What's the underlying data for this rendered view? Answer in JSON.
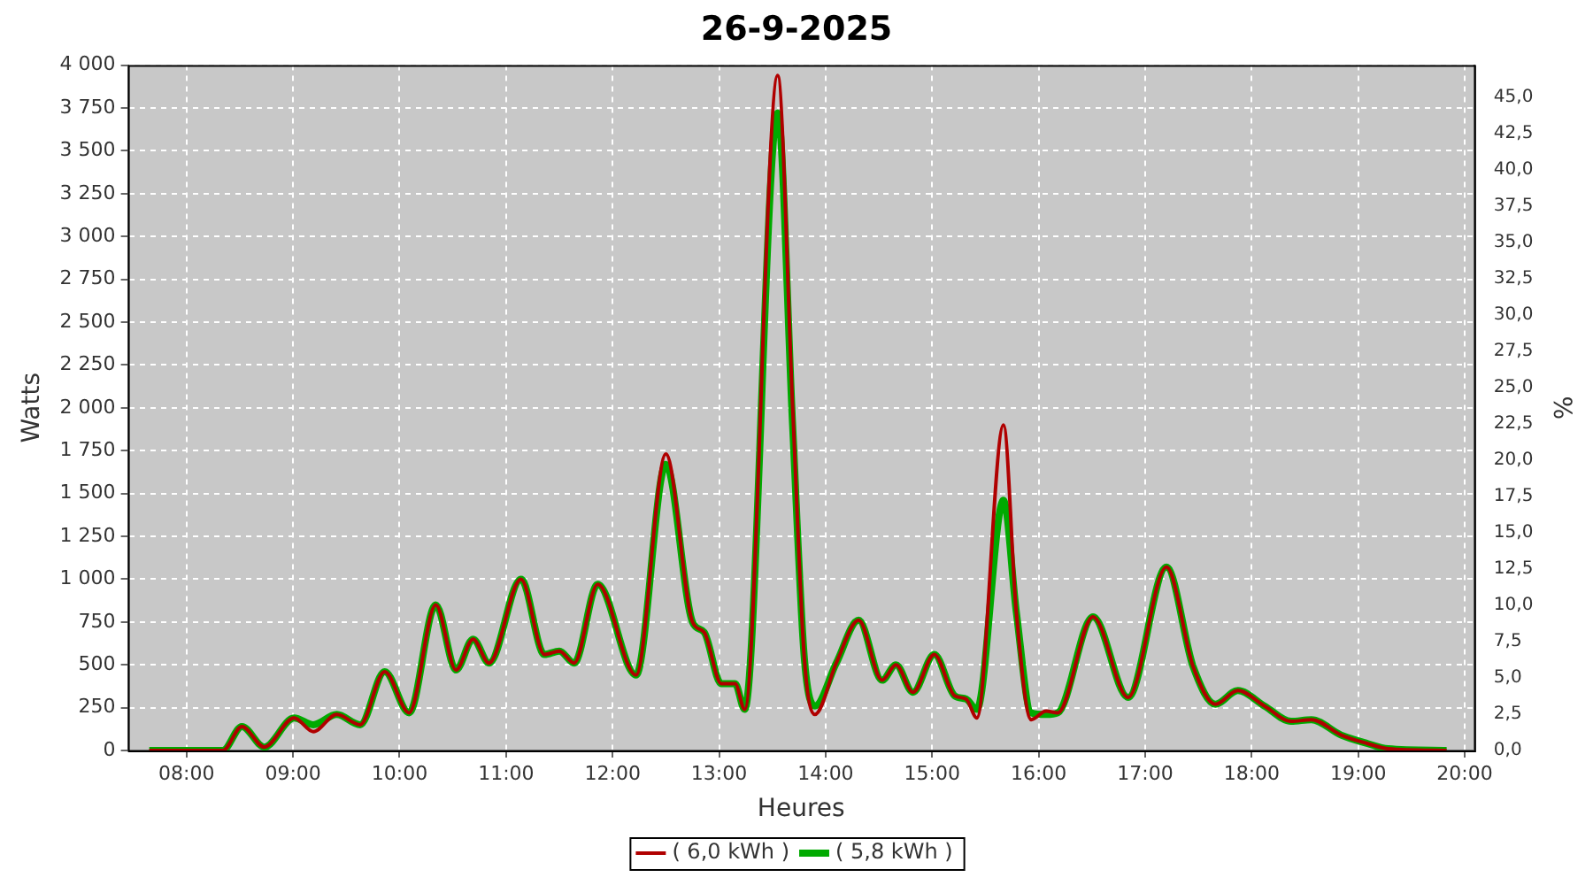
{
  "chart_data": {
    "type": "line",
    "title": "26-9-2025",
    "xlabel": "Heures",
    "ylabel": "Watts",
    "y2label": "%",
    "x": [
      7.65,
      8.2,
      8.34,
      8.52,
      8.73,
      9.01,
      9.19,
      9.41,
      9.63,
      9.86,
      10.09,
      10.34,
      10.53,
      10.69,
      10.84,
      11.14,
      11.36,
      11.5,
      11.64,
      11.86,
      12.22,
      12.5,
      12.75,
      12.86,
      13.02,
      13.15,
      13.24,
      13.55,
      13.69,
      13.8,
      13.9,
      14.1,
      14.31,
      14.53,
      14.66,
      14.82,
      15.02,
      15.21,
      15.32,
      15.42,
      15.67,
      15.79,
      15.93,
      16.07,
      16.18,
      16.51,
      16.84,
      17.2,
      17.45,
      17.66,
      17.87,
      18.12,
      18.37,
      18.56,
      18.84,
      19.09,
      19.28,
      19.83
    ],
    "series": [
      {
        "name": "( 6,0 kWh )",
        "color": "#b00000",
        "values": [
          0,
          0,
          0,
          140,
          20,
          190,
          110,
          210,
          150,
          460,
          220,
          850,
          470,
          650,
          510,
          1000,
          560,
          580,
          510,
          970,
          440,
          1730,
          750,
          690,
          390,
          390,
          240,
          3940,
          2010,
          540,
          210,
          510,
          760,
          410,
          500,
          340,
          560,
          320,
          300,
          190,
          1900,
          810,
          180,
          230,
          220,
          780,
          310,
          1070,
          490,
          270,
          350,
          260,
          170,
          180,
          90,
          40,
          10,
          0
        ]
      },
      {
        "name": "( 5,8 kWh )",
        "color": "#00aa00",
        "values": [
          0,
          0,
          0,
          140,
          20,
          190,
          150,
          210,
          150,
          460,
          220,
          850,
          470,
          650,
          510,
          1000,
          560,
          580,
          510,
          970,
          440,
          1670,
          750,
          690,
          390,
          390,
          240,
          3720,
          1900,
          540,
          260,
          510,
          760,
          410,
          500,
          340,
          560,
          320,
          300,
          240,
          1460,
          810,
          220,
          210,
          220,
          780,
          310,
          1070,
          490,
          270,
          350,
          260,
          170,
          180,
          90,
          40,
          10,
          0
        ]
      }
    ],
    "xlim": [
      7.45,
      20.09
    ],
    "xticks": [
      {
        "value": 8,
        "label": "08:00"
      },
      {
        "value": 9,
        "label": "09:00"
      },
      {
        "value": 10,
        "label": "10:00"
      },
      {
        "value": 11,
        "label": "11:00"
      },
      {
        "value": 12,
        "label": "12:00"
      },
      {
        "value": 13,
        "label": "13:00"
      },
      {
        "value": 14,
        "label": "14:00"
      },
      {
        "value": 15,
        "label": "15:00"
      },
      {
        "value": 16,
        "label": "16:00"
      },
      {
        "value": 17,
        "label": "17:00"
      },
      {
        "value": 18,
        "label": "18:00"
      },
      {
        "value": 19,
        "label": "19:00"
      },
      {
        "value": 20,
        "label": "20:00"
      }
    ],
    "ylim": [
      0,
      4000
    ],
    "yticks": [
      0,
      250,
      500,
      750,
      {
        "value": 1000,
        "label": "1 000"
      },
      {
        "value": 1250,
        "label": "1 250"
      },
      {
        "value": 1500,
        "label": "1 500"
      },
      {
        "value": 1750,
        "label": "1 750"
      },
      {
        "value": 2000,
        "label": "2 000"
      },
      {
        "value": 2250,
        "label": "2 250"
      },
      {
        "value": 2500,
        "label": "2 500"
      },
      {
        "value": 2750,
        "label": "2 750"
      },
      {
        "value": 3000,
        "label": "3 000"
      },
      {
        "value": 3250,
        "label": "3 250"
      },
      {
        "value": 3500,
        "label": "3 500"
      },
      {
        "value": 3750,
        "label": "3 750"
      },
      {
        "value": 4000,
        "label": "4 000"
      }
    ],
    "y2lim": [
      0,
      47.2
    ],
    "y2ticks": [
      {
        "value": 0,
        "label": "0,0"
      },
      {
        "value": 2.5,
        "label": "2,5"
      },
      {
        "value": 5,
        "label": "5,0"
      },
      {
        "value": 7.5,
        "label": "7,5"
      },
      {
        "value": 10,
        "label": "10,0"
      },
      {
        "value": 12.5,
        "label": "12,5"
      },
      {
        "value": 15,
        "label": "15,0"
      },
      {
        "value": 17.5,
        "label": "17,5"
      },
      {
        "value": 20,
        "label": "20,0"
      },
      {
        "value": 22.5,
        "label": "22,5"
      },
      {
        "value": 25,
        "label": "25,0"
      },
      {
        "value": 27.5,
        "label": "27,5"
      },
      {
        "value": 30,
        "label": "30,0"
      },
      {
        "value": 32.5,
        "label": "32,5"
      },
      {
        "value": 35,
        "label": "35,0"
      },
      {
        "value": 37.5,
        "label": "37,5"
      },
      {
        "value": 40,
        "label": "40,0"
      },
      {
        "value": 42.5,
        "label": "42,5"
      },
      {
        "value": 45,
        "label": "45,0"
      }
    ],
    "grid": true,
    "legend": "bottom",
    "marker": "none",
    "line_style": "solid"
  }
}
